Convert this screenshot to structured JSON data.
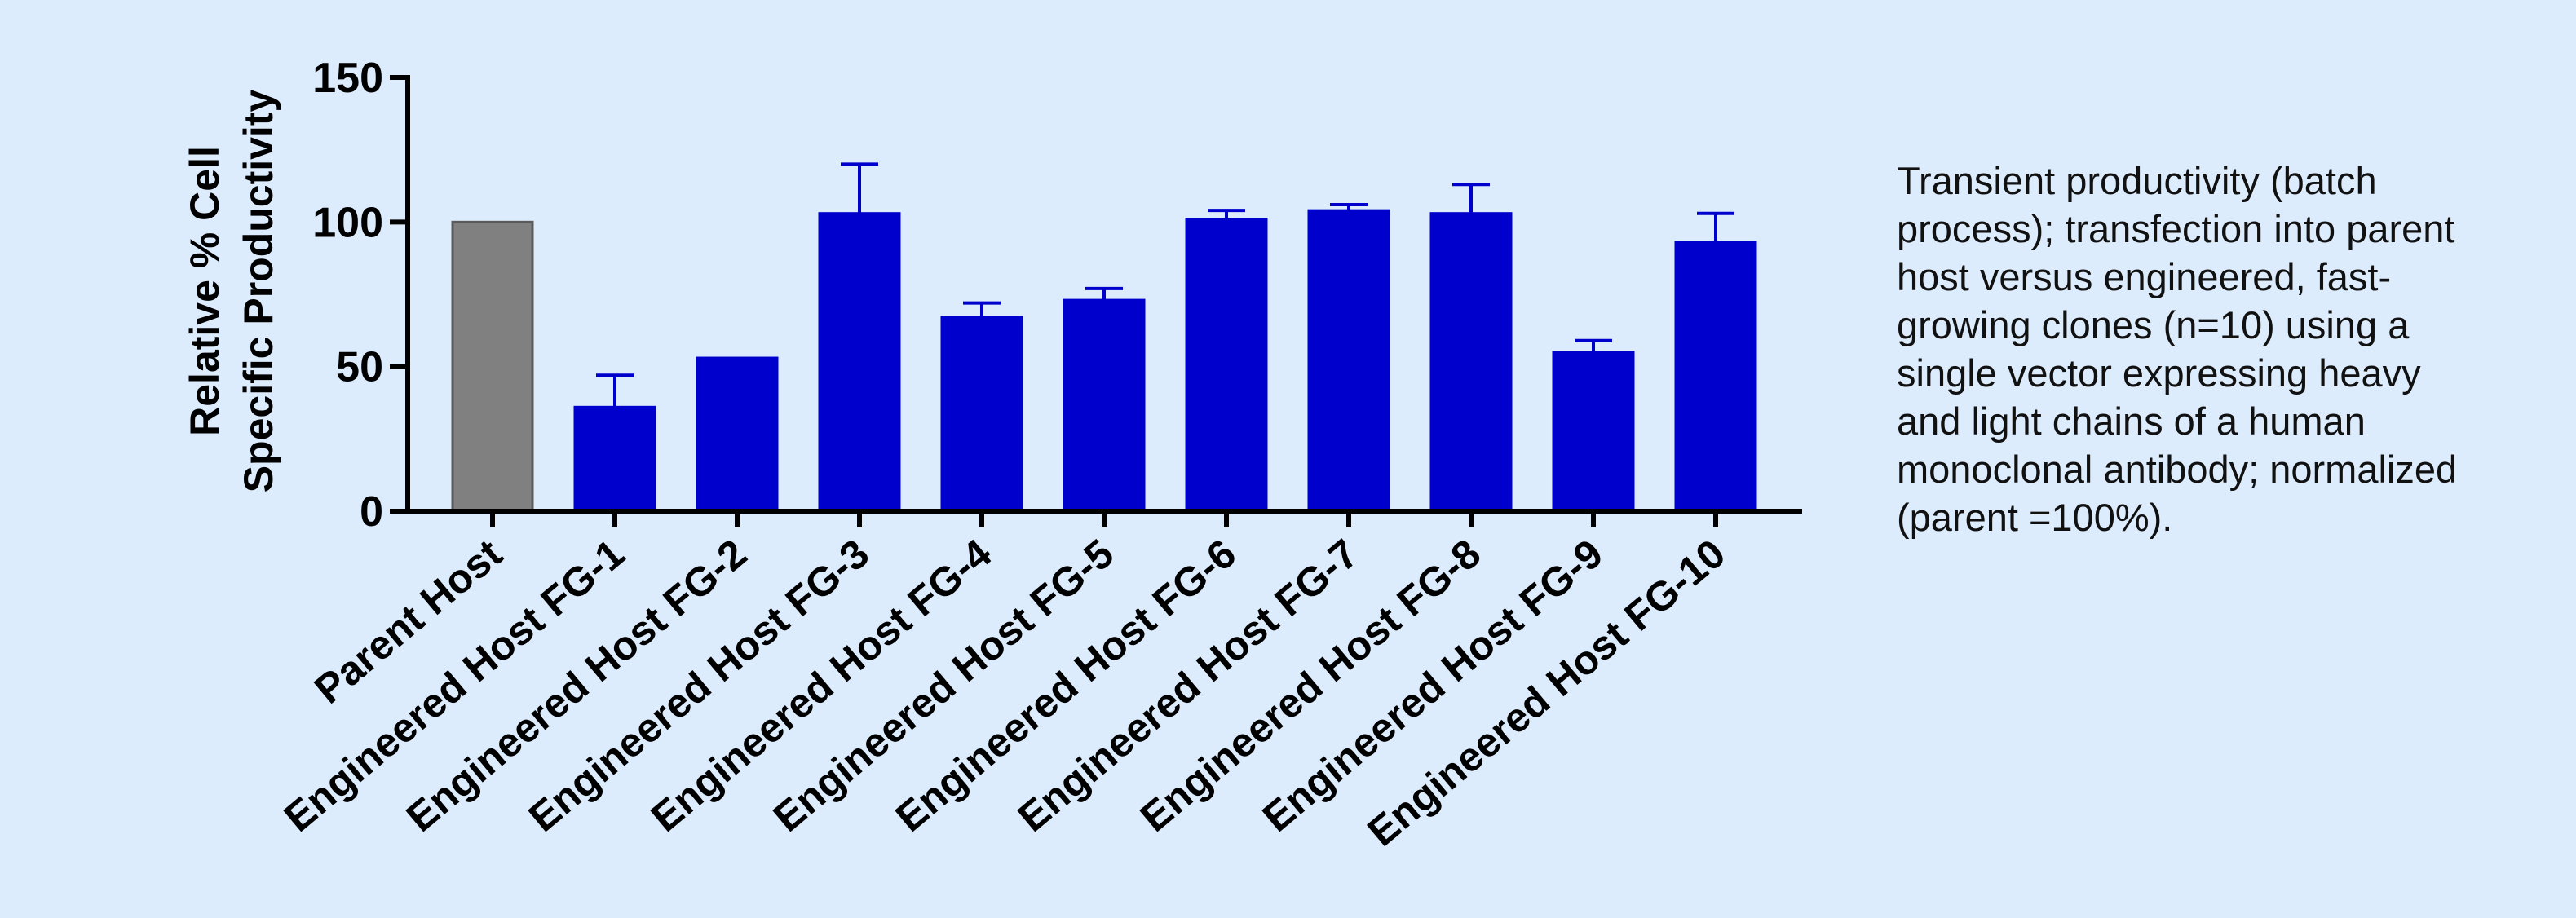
{
  "caption": "Transient productivity (batch\nprocess); transfection into parent\nhost versus engineered, fast-\ngrowing clones (n=10) using a\nsingle vector expressing heavy\nand light chains of a human\nmonoclonal antibody; normalized\n(parent =100%).",
  "colors": {
    "background": "#dcecfc",
    "parent_bar": "#808080",
    "engineered_bar": "#0000cc",
    "axis": "#000000"
  },
  "chart_data": {
    "type": "bar",
    "title": "",
    "xlabel": "",
    "ylabel_lines": [
      "Relative % Cell",
      "Specific Productivity"
    ],
    "ylim": [
      0,
      150
    ],
    "yticks": [
      "0",
      "50",
      "100",
      "150"
    ],
    "grid": false,
    "legend": "none",
    "error_bars": "upper, mean ± error",
    "categories": [
      "Parent Host",
      "Engineered Host FG-1",
      "Engineered Host FG-2",
      "Engineered Host FG-3",
      "Engineered Host FG-4",
      "Engineered Host FG-5",
      "Engineered Host FG-6",
      "Engineered Host FG-7",
      "Engineered Host FG-8",
      "Engineered Host FG-9",
      "Engineered Host FG-10"
    ],
    "values": [
      100,
      36,
      53,
      103,
      67,
      73,
      101,
      104,
      103,
      55,
      93
    ],
    "errors": [
      0,
      11,
      0,
      17,
      5,
      4,
      3,
      2,
      10,
      4,
      10
    ],
    "bar_colors": [
      "#808080",
      "#0000cc",
      "#0000cc",
      "#0000cc",
      "#0000cc",
      "#0000cc",
      "#0000cc",
      "#0000cc",
      "#0000cc",
      "#0000cc",
      "#0000cc"
    ]
  }
}
